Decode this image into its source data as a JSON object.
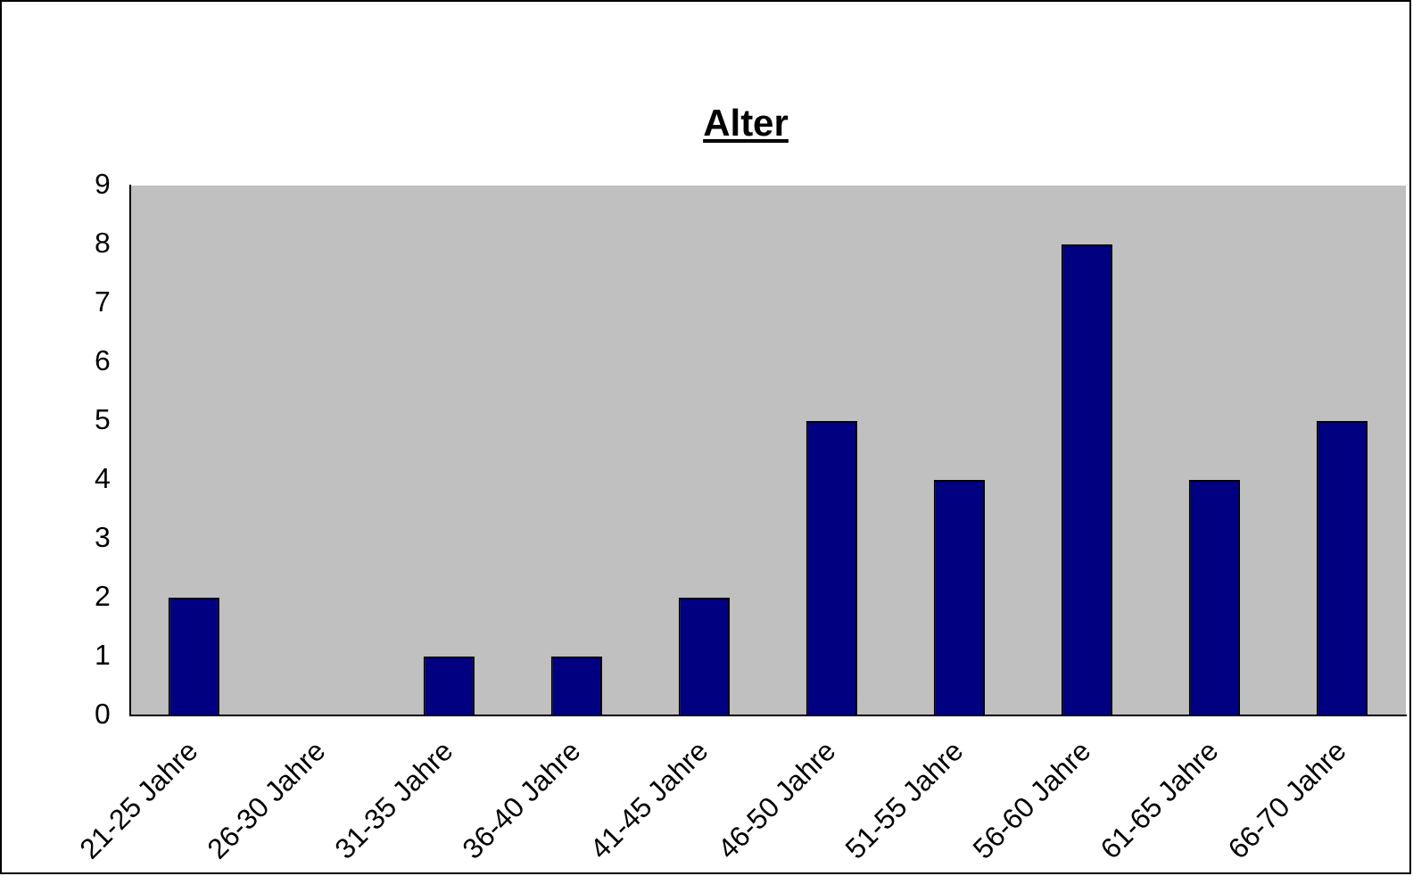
{
  "chart_data": {
    "type": "bar",
    "title": "Alter",
    "categories": [
      "21-25 Jahre",
      "26-30 Jahre",
      "31-35 Jahre",
      "36-40 Jahre",
      "41-45 Jahre",
      "46-50 Jahre",
      "51-55 Jahre",
      "56-60 Jahre",
      "61-65 Jahre",
      "66-70 Jahre"
    ],
    "values": [
      2,
      0,
      1,
      1,
      2,
      5,
      4,
      8,
      4,
      5
    ],
    "color": "#000080",
    "ylim": [
      0,
      9
    ],
    "yticks": [
      0,
      1,
      2,
      3,
      4,
      5,
      6,
      7,
      8,
      9
    ],
    "grid": false,
    "legend": false
  }
}
